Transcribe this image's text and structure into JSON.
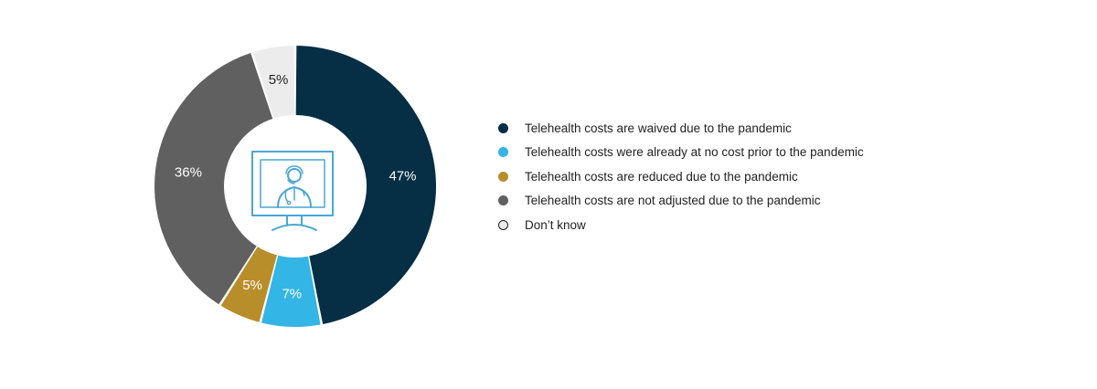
{
  "chart_data": {
    "type": "pie",
    "title": "",
    "categories": [
      "Telehealth costs are waived due to the pandemic",
      "Telehealth costs were already at no cost prior to the pandemic",
      "Telehealth costs are reduced due to the pandemic",
      "Telehealth costs are not adjusted due to the pandemic",
      "Don’t know"
    ],
    "values": [
      47,
      7,
      5,
      36,
      5
    ],
    "labels": [
      "47%",
      "7%",
      "5%",
      "36%",
      "5%"
    ],
    "colors": [
      "#062e45",
      "#33b5e5",
      "#b88e2b",
      "#606060",
      "#ececec"
    ],
    "label_colors": [
      "#ffffff",
      "#ffffff",
      "#ffffff",
      "#ffffff",
      "#222222"
    ],
    "legend_position": "right",
    "center_icon": "telehealth-doctor-monitor-icon"
  }
}
